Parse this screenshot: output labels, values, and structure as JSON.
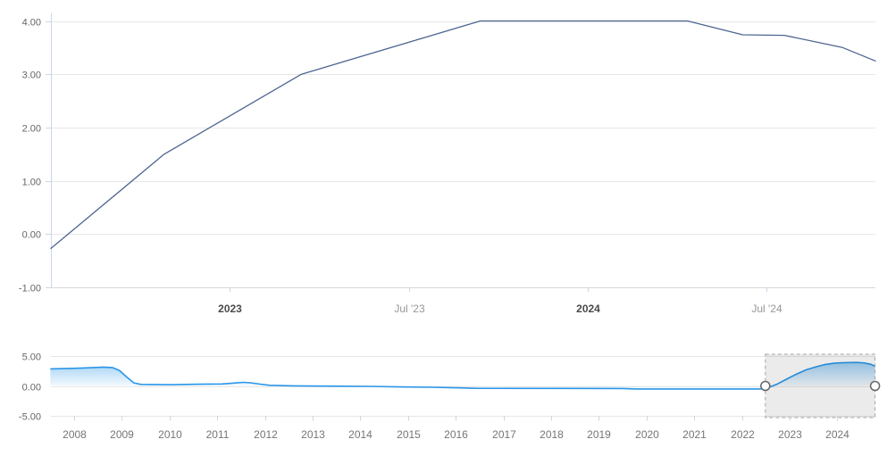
{
  "chart_data": {
    "type": "line",
    "title": "",
    "legend": "none",
    "main_chart": {
      "type": "line",
      "line_color": "#4d6590",
      "grid": "on",
      "y_axis": {
        "ylim": [
          -1.0,
          4.17
        ],
        "ticks": [
          {
            "label": "4.00",
            "value": 4
          },
          {
            "label": "3.00",
            "value": 3
          },
          {
            "label": "2.00",
            "value": 2
          },
          {
            "label": "1.00",
            "value": 1
          },
          {
            "label": "0.00",
            "value": 0
          },
          {
            "label": "-1.00",
            "value": -1
          }
        ]
      },
      "x_axis": {
        "note": "t = months since Jul 2022",
        "ticks": [
          {
            "label": "2023",
            "bold": true,
            "t": 6
          },
          {
            "label": "Jul '23",
            "bold": false,
            "t": 12
          },
          {
            "label": "2024",
            "bold": true,
            "t": 18
          },
          {
            "label": "Jul '24",
            "bold": false,
            "t": 24
          }
        ]
      },
      "series": [
        {
          "date": "2022-07",
          "t": 0,
          "value": -0.27
        },
        {
          "date": "2022-11",
          "t": 3.8,
          "value": 1.5
        },
        {
          "date": "2023-03",
          "t": 8.4,
          "value": 3.0
        },
        {
          "date": "2023-09",
          "t": 14.4,
          "value": 4.0
        },
        {
          "date": "2024-04",
          "t": 21.35,
          "value": 4.0
        },
        {
          "date": "2024-06",
          "t": 23.2,
          "value": 3.74
        },
        {
          "date": "2024-07",
          "t": 24.6,
          "value": 3.73
        },
        {
          "date": "2024-09",
          "t": 26.55,
          "value": 3.5
        },
        {
          "date": "2024-10",
          "t": 27.65,
          "value": 3.25
        }
      ]
    },
    "navigator": {
      "type": "area",
      "line_color": "#2a96e8",
      "fill_top": "rgba(42,150,232,0.55)",
      "fill_bottom": "rgba(42,150,232,0.04)",
      "y_axis": {
        "ylim": [
          -5,
          5
        ],
        "ticks": [
          {
            "label": "5.00",
            "value": 5
          },
          {
            "label": "0.00",
            "value": 0
          },
          {
            "label": "-5.00",
            "value": -5
          }
        ]
      },
      "x_axis": {
        "year_labels": [
          "2008",
          "2009",
          "2010",
          "2011",
          "2012",
          "2013",
          "2014",
          "2015",
          "2016",
          "2017",
          "2018",
          "2019",
          "2020",
          "2021",
          "2022",
          "2023",
          "2024"
        ]
      },
      "series": [
        {
          "year": 2007.5,
          "value": 2.85
        },
        {
          "year": 2008.05,
          "value": 2.95
        },
        {
          "year": 2008.35,
          "value": 3.05
        },
        {
          "year": 2008.6,
          "value": 3.15
        },
        {
          "year": 2008.8,
          "value": 3.08
        },
        {
          "year": 2008.95,
          "value": 2.6
        },
        {
          "year": 2009.1,
          "value": 1.5
        },
        {
          "year": 2009.25,
          "value": 0.5
        },
        {
          "year": 2009.4,
          "value": 0.25
        },
        {
          "year": 2010.0,
          "value": 0.2
        },
        {
          "year": 2010.6,
          "value": 0.28
        },
        {
          "year": 2011.1,
          "value": 0.33
        },
        {
          "year": 2011.4,
          "value": 0.5
        },
        {
          "year": 2011.55,
          "value": 0.6
        },
        {
          "year": 2011.7,
          "value": 0.52
        },
        {
          "year": 2011.9,
          "value": 0.3
        },
        {
          "year": 2012.1,
          "value": 0.1
        },
        {
          "year": 2012.6,
          "value": 0.02
        },
        {
          "year": 2013.2,
          "value": -0.03
        },
        {
          "year": 2014.2,
          "value": -0.08
        },
        {
          "year": 2014.8,
          "value": -0.17
        },
        {
          "year": 2015.5,
          "value": -0.22
        },
        {
          "year": 2016.1,
          "value": -0.33
        },
        {
          "year": 2016.4,
          "value": -0.4
        },
        {
          "year": 2019.5,
          "value": -0.44
        },
        {
          "year": 2019.8,
          "value": -0.5
        },
        {
          "year": 2022.4,
          "value": -0.5
        },
        {
          "year": 2022.55,
          "value": -0.3
        },
        {
          "year": 2022.75,
          "value": 0.35
        },
        {
          "year": 2022.95,
          "value": 1.2
        },
        {
          "year": 2023.15,
          "value": 2.0
        },
        {
          "year": 2023.35,
          "value": 2.7
        },
        {
          "year": 2023.55,
          "value": 3.2
        },
        {
          "year": 2023.75,
          "value": 3.6
        },
        {
          "year": 2023.95,
          "value": 3.82
        },
        {
          "year": 2024.15,
          "value": 3.9
        },
        {
          "year": 2024.4,
          "value": 3.92
        },
        {
          "year": 2024.55,
          "value": 3.85
        },
        {
          "year": 2024.7,
          "value": 3.62
        },
        {
          "year": 2024.79,
          "value": 3.3
        }
      ],
      "selected_range": {
        "from_year": 2022.49,
        "to_year": 2024.79
      }
    },
    "colors": {
      "gridline": "#e7e7e7",
      "axis_line": "#ccd6eb",
      "main_bottom_axis": "#d9d9d9",
      "y_label": "#666666",
      "x_label_bold": "#4a4a4a",
      "x_label_regular": "#979797",
      "nav_year_label": "#757575",
      "selection_fill": "rgba(0,0,0,0.08)",
      "selection_border": "#a6a6a6",
      "handle_fill": "#ffffff",
      "handle_stroke": "#666666"
    }
  }
}
